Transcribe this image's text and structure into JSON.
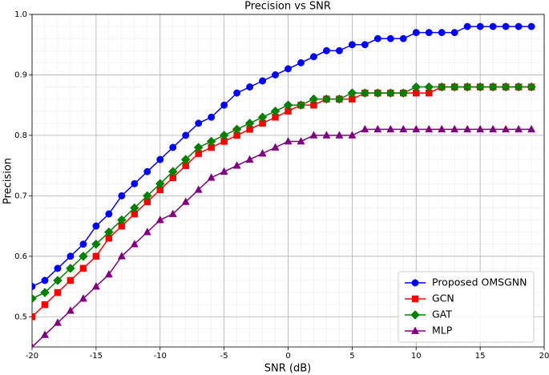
{
  "chart_data": {
    "type": "line",
    "title": "Precision vs SNR",
    "x_label": "SNR (dB)",
    "y_label": "Precision",
    "x": [
      -20,
      -19,
      -18,
      -17,
      -16,
      -15,
      -14,
      -13,
      -12,
      -11,
      -10,
      -9,
      -8,
      -7,
      -6,
      -5,
      -4,
      -3,
      -2,
      -1,
      0,
      1,
      2,
      3,
      4,
      5,
      6,
      7,
      8,
      9,
      10,
      11,
      12,
      13,
      14,
      15,
      16,
      17,
      18,
      19
    ],
    "series": [
      {
        "name": "Proposed OMSGNN",
        "color": "#0000ff",
        "marker": "circle",
        "values": [
          0.55,
          0.56,
          0.58,
          0.6,
          0.62,
          0.65,
          0.67,
          0.7,
          0.72,
          0.74,
          0.76,
          0.78,
          0.8,
          0.82,
          0.83,
          0.85,
          0.87,
          0.88,
          0.89,
          0.9,
          0.91,
          0.92,
          0.93,
          0.94,
          0.94,
          0.95,
          0.95,
          0.96,
          0.96,
          0.96,
          0.97,
          0.97,
          0.97,
          0.97,
          0.98,
          0.98,
          0.98,
          0.98,
          0.98,
          0.98
        ]
      },
      {
        "name": "GCN",
        "color": "#ff0000",
        "marker": "square",
        "values": [
          0.5,
          0.52,
          0.54,
          0.56,
          0.58,
          0.6,
          0.63,
          0.65,
          0.67,
          0.69,
          0.71,
          0.73,
          0.75,
          0.77,
          0.78,
          0.79,
          0.8,
          0.81,
          0.82,
          0.83,
          0.84,
          0.85,
          0.85,
          0.86,
          0.86,
          0.86,
          0.87,
          0.87,
          0.87,
          0.87,
          0.87,
          0.87,
          0.88,
          0.88,
          0.88,
          0.88,
          0.88,
          0.88,
          0.88,
          0.88
        ]
      },
      {
        "name": "GAT",
        "color": "#008000",
        "marker": "diamond",
        "values": [
          0.53,
          0.54,
          0.56,
          0.58,
          0.6,
          0.62,
          0.64,
          0.66,
          0.68,
          0.7,
          0.72,
          0.74,
          0.76,
          0.78,
          0.79,
          0.8,
          0.81,
          0.82,
          0.83,
          0.84,
          0.85,
          0.85,
          0.86,
          0.86,
          0.86,
          0.87,
          0.87,
          0.87,
          0.87,
          0.87,
          0.88,
          0.88,
          0.88,
          0.88,
          0.88,
          0.88,
          0.88,
          0.88,
          0.88,
          0.88
        ]
      },
      {
        "name": "MLP",
        "color": "#800080",
        "marker": "triangle",
        "values": [
          0.45,
          0.47,
          0.49,
          0.51,
          0.53,
          0.55,
          0.57,
          0.6,
          0.62,
          0.64,
          0.66,
          0.67,
          0.69,
          0.71,
          0.73,
          0.74,
          0.75,
          0.76,
          0.77,
          0.78,
          0.79,
          0.79,
          0.8,
          0.8,
          0.8,
          0.8,
          0.81,
          0.81,
          0.81,
          0.81,
          0.81,
          0.81,
          0.81,
          0.81,
          0.81,
          0.81,
          0.81,
          0.81,
          0.81,
          0.81
        ]
      }
    ],
    "xlim": [
      -20,
      20
    ],
    "xticks": [
      -20,
      -15,
      -10,
      -5,
      0,
      5,
      10,
      15,
      20
    ],
    "ylim": [
      0.45,
      1.0
    ],
    "yticks": [
      0.5,
      0.6,
      0.7,
      0.8,
      0.9,
      {
        "value": 1,
        "label": "1.0"
      }
    ],
    "grid": true,
    "minor_grid": true,
    "legend": "lower right"
  }
}
